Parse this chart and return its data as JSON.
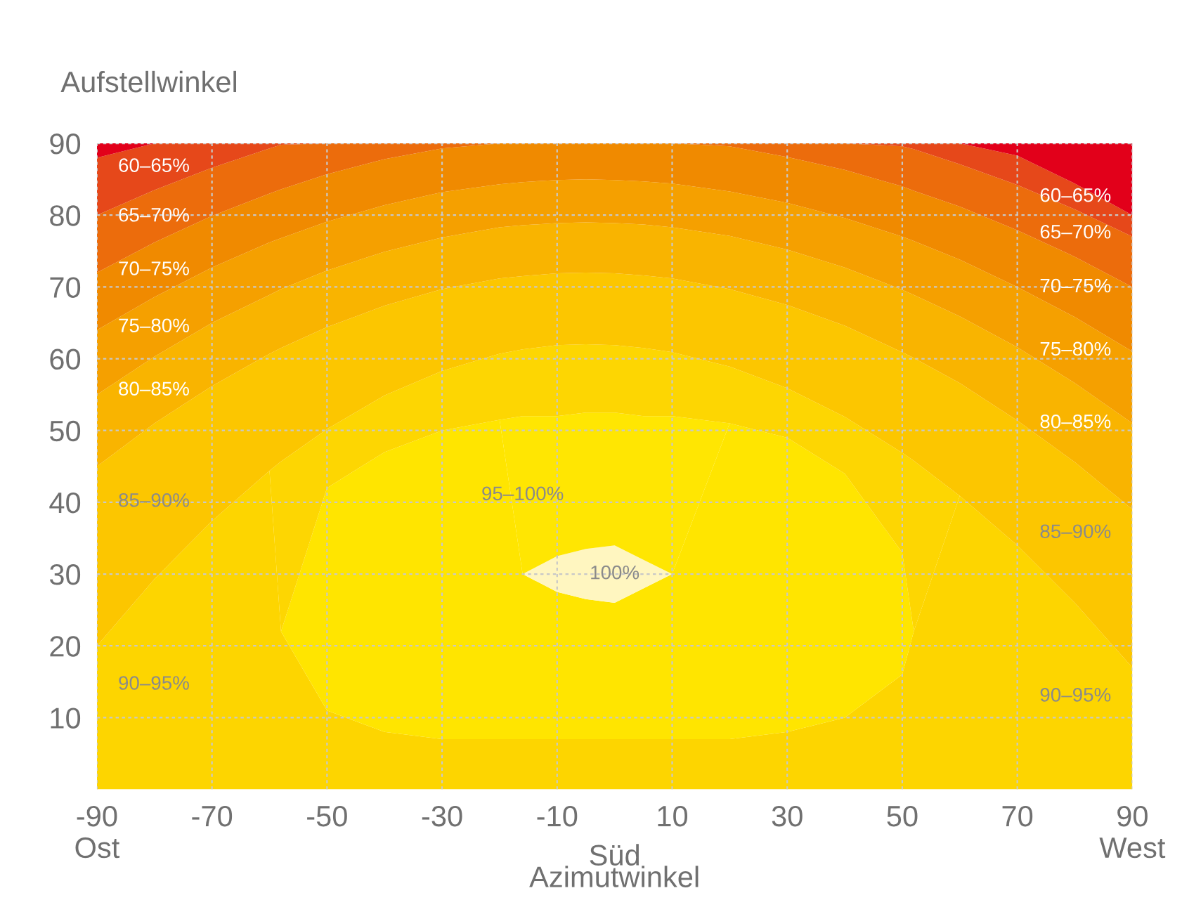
{
  "chart_data": {
    "type": "area",
    "stacked": true,
    "ylabel": "Aufstellwinkel",
    "xlabel": "Azimutwinkel",
    "x": [
      -90,
      -80,
      -70,
      -60,
      -58,
      -50,
      -40,
      -30,
      -20,
      -16,
      -10,
      -5,
      0,
      5,
      10,
      20,
      30,
      40,
      50,
      52,
      60,
      70,
      80,
      90
    ],
    "xlim": [
      -90,
      90
    ],
    "ylim": [
      0,
      90
    ],
    "xticks": [
      {
        "value": -90,
        "label": "-90\nOst"
      },
      -70,
      -50,
      -30,
      -10,
      10,
      30,
      50,
      70,
      {
        "value": 90,
        "label": "90\nWest"
      }
    ],
    "yticks": [
      10,
      20,
      30,
      40,
      50,
      60,
      70,
      80,
      90
    ],
    "grid": true,
    "series": [
      {
        "name": "90–95%",
        "color": "#fdd500",
        "values": [
          20,
          29.3,
          37.4,
          44.4,
          22,
          11,
          8,
          7,
          7,
          7,
          7,
          7,
          7,
          7,
          7,
          7,
          8,
          10,
          16,
          22,
          40.9,
          34,
          26,
          17
        ]
      },
      {
        "color": "#ffe500",
        "values": [
          0,
          0,
          0,
          0,
          0,
          31,
          39,
          43,
          44.5,
          23,
          20.5,
          19.5,
          19,
          21,
          23,
          44,
          41,
          34,
          17,
          0,
          0,
          0,
          0,
          0
        ]
      },
      {
        "name": "100%",
        "color": "#fff6c0",
        "values": [
          0,
          0,
          0,
          0,
          0,
          0,
          0,
          0,
          0,
          0,
          5,
          7,
          8,
          4,
          0,
          0,
          0,
          0,
          0,
          0,
          0,
          0,
          0,
          0
        ]
      },
      {
        "name": "95–100%",
        "color": "#ffe602",
        "values": [
          0,
          0,
          0,
          0,
          0,
          0,
          0,
          0,
          0,
          22,
          19.5,
          19,
          18.5,
          20,
          22,
          0,
          0,
          0,
          0,
          0,
          0,
          0,
          0,
          0
        ]
      },
      {
        "color": "#fdd602",
        "values": [
          0,
          0,
          0,
          0,
          23.7,
          8.2,
          7.9,
          8.3,
          9.2,
          9.3,
          9.9,
          9.5,
          9.4,
          9.5,
          8.9,
          7.9,
          6.9,
          7.9,
          13.9,
          23.8,
          0,
          0,
          0,
          0
        ]
      },
      {
        "name": "85–90%",
        "color": "#fcc600",
        "values": [
          25,
          21.7,
          18.8,
          16.3,
          15.8,
          14.2,
          12.5,
          11.4,
          10.5,
          10.2,
          10,
          10,
          10,
          10.1,
          10.3,
          10.8,
          11.6,
          12.7,
          14,
          14.3,
          15.7,
          17.4,
          19.6,
          22
        ]
      },
      {
        "name": "80–85%",
        "color": "#f9b400",
        "values": [
          10,
          9.3,
          8.8,
          8.2,
          8.2,
          7.9,
          7.5,
          7.2,
          7.1,
          7.1,
          7,
          7,
          7,
          7.1,
          7.1,
          7.4,
          7.7,
          8.1,
          8.7,
          8.8,
          9.3,
          10.2,
          11,
          12
        ]
      },
      {
        "name": "75–80%",
        "color": "#f5a000",
        "values": [
          9,
          8.3,
          7.7,
          7.3,
          7.1,
          6.8,
          6.5,
          6.3,
          6,
          6,
          6,
          6,
          6,
          6,
          6.1,
          6.2,
          6.5,
          6.9,
          7.4,
          7.5,
          7.9,
          8.4,
          9.2,
          10
        ]
      },
      {
        "name": "70–75%",
        "color": "#f08a00",
        "values": [
          8,
          7.6,
          7.2,
          6.8,
          6.8,
          6.6,
          6.4,
          6.1,
          5.7,
          5.4,
          5.1,
          5,
          5.1,
          5.3,
          5.6,
          6.3,
          6.4,
          6.7,
          7,
          7,
          7.4,
          7.9,
          8.4,
          9
        ]
      },
      {
        "name": "65–70%",
        "color": "#ec6c0c",
        "values": [
          8,
          7.3,
          6.7,
          6.3,
          6.2,
          4.3,
          2.2,
          0.7,
          0,
          0,
          0,
          0,
          0,
          0,
          0,
          0.4,
          1.9,
          3.7,
          5.6,
          5.8,
          5.9,
          6.3,
          6.6,
          7
        ]
      },
      {
        "name": "60–65%",
        "color": "#e6481a",
        "values": [
          8,
          6.5,
          3.4,
          0.7,
          0.2,
          0,
          0,
          0,
          0,
          0,
          0,
          0,
          0,
          0,
          0,
          0,
          0,
          0,
          0.4,
          0.8,
          2.9,
          4.1,
          3.6,
          3
        ]
      },
      {
        "color": "#e2001a",
        "values": [
          2,
          0,
          0,
          0,
          0,
          0,
          0,
          0,
          0,
          0,
          0,
          0,
          0,
          0,
          0,
          0,
          0,
          0,
          0,
          0,
          0,
          1.7,
          5.6,
          10
        ]
      }
    ],
    "annotations": [
      "Süd"
    ]
  }
}
